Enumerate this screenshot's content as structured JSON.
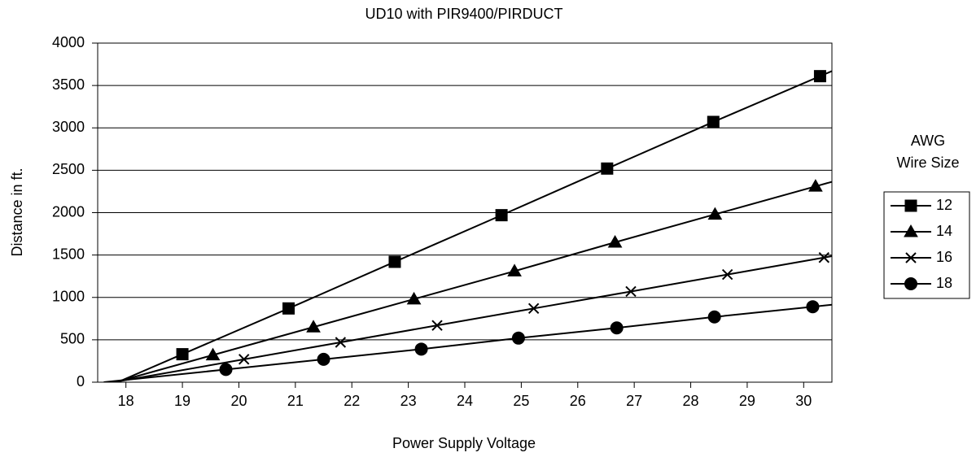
{
  "chart_data": {
    "type": "line",
    "title": "UD10 with PIR9400/PIRDUCT",
    "x_label": "Power Supply Voltage",
    "y_label": "Distance in ft.",
    "legend_title": [
      "AWG",
      "Wire Size"
    ],
    "xlim": [
      17.5,
      30.5
    ],
    "xticks": [
      18,
      19,
      20,
      21,
      22,
      23,
      24,
      25,
      26,
      27,
      28,
      29,
      30
    ],
    "ylim": [
      0,
      4000
    ],
    "yticks": [
      0,
      500,
      1000,
      1500,
      2000,
      2500,
      3000,
      3500,
      4000
    ],
    "grid": true,
    "legend": "right",
    "series": [
      {
        "name": "12",
        "color": "#000000",
        "marker": "square",
        "x": [
          19.0,
          20.88,
          22.76,
          24.65,
          26.52,
          28.4,
          30.29
        ],
        "values": [
          330,
          870,
          1420,
          1970,
          2520,
          3070,
          3610
        ]
      },
      {
        "name": "14",
        "color": "#000000",
        "marker": "triangle",
        "x": [
          19.54,
          21.32,
          23.1,
          24.88,
          26.66,
          28.43,
          30.21
        ],
        "values": [
          320,
          650,
          980,
          1310,
          1650,
          1980,
          2310
        ]
      },
      {
        "name": "16",
        "color": "#000000",
        "marker": "x",
        "x": [
          20.09,
          21.8,
          23.51,
          25.22,
          26.94,
          28.65,
          30.36
        ],
        "values": [
          270,
          470,
          670,
          870,
          1070,
          1270,
          1470
        ]
      },
      {
        "name": "18",
        "color": "#000000",
        "marker": "circle",
        "x": [
          19.77,
          21.5,
          23.23,
          24.95,
          26.69,
          28.42,
          30.16
        ],
        "values": [
          150,
          270,
          390,
          520,
          640,
          770,
          890
        ]
      }
    ]
  }
}
